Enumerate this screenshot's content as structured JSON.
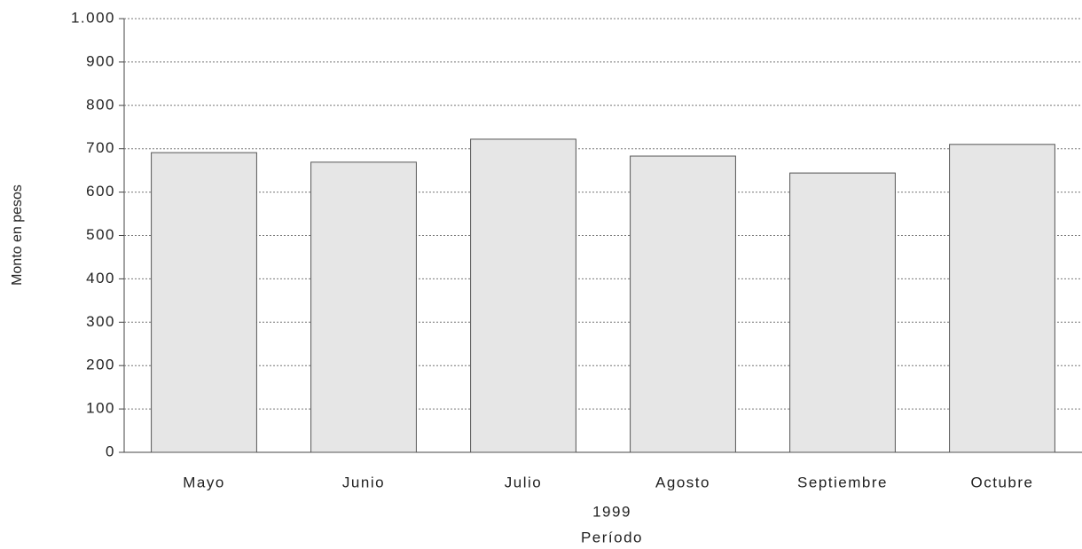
{
  "chart_data": {
    "type": "bar",
    "categories": [
      "Mayo",
      "Junio",
      "Julio",
      "Agosto",
      "Septiembre",
      "Octubre"
    ],
    "values": [
      691,
      669,
      722,
      683,
      644,
      710
    ],
    "color": "#e6e6e6",
    "ylim": [
      0,
      1000
    ],
    "yticks": [
      0,
      100,
      200,
      300,
      400,
      500,
      600,
      700,
      800,
      900,
      {
        "value": 1000,
        "label": "1.000"
      }
    ],
    "x_label": [
      "1999",
      "Período"
    ],
    "y_label": "Monto en pesos",
    "grid": true
  }
}
